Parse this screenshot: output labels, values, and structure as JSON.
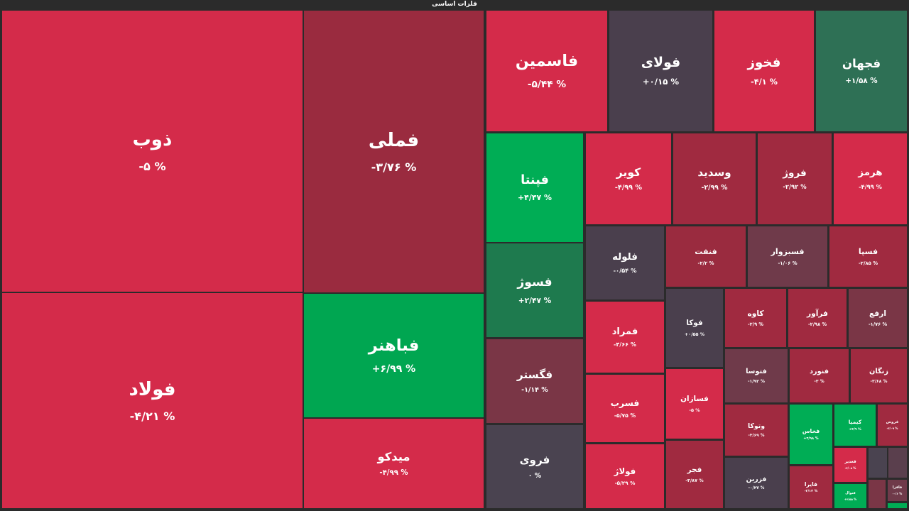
{
  "chart_data": {
    "type": "treemap",
    "title": "فلزات اساسی",
    "tiles": [
      {
        "name": "ذوب",
        "change": "-۵ %",
        "color": "#d42b4a"
      },
      {
        "name": "فولاد",
        "change": "-۴/۲۱ %",
        "color": "#d42b4a"
      },
      {
        "name": "فملی",
        "change": "-۳/۷۶ %",
        "color": "#9a2b3f"
      },
      {
        "name": "فباهنر",
        "change": "+۶/۹۹ %",
        "color": "#00a651"
      },
      {
        "name": "میدکو",
        "change": "-۴/۹۹ %",
        "color": "#d42b4a"
      },
      {
        "name": "فاسمین",
        "change": "-۵/۴۴ %",
        "color": "#d42b4a"
      },
      {
        "name": "فولای",
        "change": "+۰/۱۵ %",
        "color": "#4a3f4d"
      },
      {
        "name": "فخوز",
        "change": "-۴/۱ %",
        "color": "#d42b4a"
      },
      {
        "name": "فجهان",
        "change": "+۱/۵۸ %",
        "color": "#2e7055"
      },
      {
        "name": "فپنتا",
        "change": "+۴/۴۷ %",
        "color": "#00ad55"
      },
      {
        "name": "فسوژ",
        "change": "+۲/۴۷ %",
        "color": "#1e7a4e"
      },
      {
        "name": "فگستر",
        "change": "-۱/۱۴ %",
        "color": "#7a3646"
      },
      {
        "name": "فروی",
        "change": "۰ %",
        "color": "#4a4350"
      },
      {
        "name": "کویر",
        "change": "-۴/۹۹ %",
        "color": "#d42b4a"
      },
      {
        "name": "وسدید",
        "change": "-۲/۹۹ %",
        "color": "#a02a40"
      },
      {
        "name": "فروژ",
        "change": "-۲/۹۲ %",
        "color": "#a02a40"
      },
      {
        "name": "هرمز",
        "change": "-۴/۹۹ %",
        "color": "#d42b4a"
      },
      {
        "name": "فلوله",
        "change": "-۰/۵۴ %",
        "color": "#4a3f4d"
      },
      {
        "name": "فنفت",
        "change": "-۲/۲ %",
        "color": "#9a2b3f"
      },
      {
        "name": "فسبزوار",
        "change": "-۱/۰۶ %",
        "color": "#6f3a4a"
      },
      {
        "name": "فسپا",
        "change": "-۲/۸۵ %",
        "color": "#a02a40"
      },
      {
        "name": "فمراد",
        "change": "-۴/۶۶ %",
        "color": "#d42b4a"
      },
      {
        "name": "فوکا",
        "change": "+۰/۵۵ %",
        "color": "#4a3f4d"
      },
      {
        "name": "کاوه",
        "change": "-۲/۹ %",
        "color": "#a02a40"
      },
      {
        "name": "فرآور",
        "change": "-۲/۹۸ %",
        "color": "#a02a40"
      },
      {
        "name": "ارفع",
        "change": "-۱/۷۶ %",
        "color": "#7a3646"
      },
      {
        "name": "فسرب",
        "change": "-۵/۷۵ %",
        "color": "#d42b4a"
      },
      {
        "name": "فسازان",
        "change": "-۵ %",
        "color": "#d42b4a"
      },
      {
        "name": "فتوسا",
        "change": "-۱/۹۲ %",
        "color": "#6f3a4a"
      },
      {
        "name": "فنورد",
        "change": "-۳ %",
        "color": "#a02a40"
      },
      {
        "name": "زنگان",
        "change": "-۳/۶۸ %",
        "color": "#a02a40"
      },
      {
        "name": "فولاژ",
        "change": "-۵/۲۹ %",
        "color": "#d42b4a"
      },
      {
        "name": "فجر",
        "change": "-۳/۸۷ %",
        "color": "#a02a40"
      },
      {
        "name": "وتوکا",
        "change": "-۳/۶۹ %",
        "color": "#a02a40"
      },
      {
        "name": "فخاس",
        "change": "+۴/۹۸ %",
        "color": "#00ad55"
      },
      {
        "name": "کیمیا",
        "change": "+۴/۹ %",
        "color": "#00ad55"
      },
      {
        "name": "فروس",
        "change": "-۳/۰۹ %",
        "color": "#a02a40"
      },
      {
        "name": "فزرین",
        "change": "-۰/۴۷ %",
        "color": "#4a3f4d"
      },
      {
        "name": "فایرا",
        "change": "-۲/۱۳ %",
        "color": "#a02a40"
      },
      {
        "name": "فغدیر",
        "change": "-۴/۰۸ %",
        "color": "#d42b4a"
      },
      {
        "color": "#4a4350"
      },
      {
        "color": "#5a3f4d"
      },
      {
        "name": "فنوال",
        "change": "+۴/۵۵ %",
        "color": "#00ad55"
      },
      {
        "color": "#7a3646"
      },
      {
        "name": "فافزا",
        "change": "-۰/۶ %",
        "color": "#6f3a4a"
      },
      {
        "color": "#00ad55"
      }
    ]
  }
}
